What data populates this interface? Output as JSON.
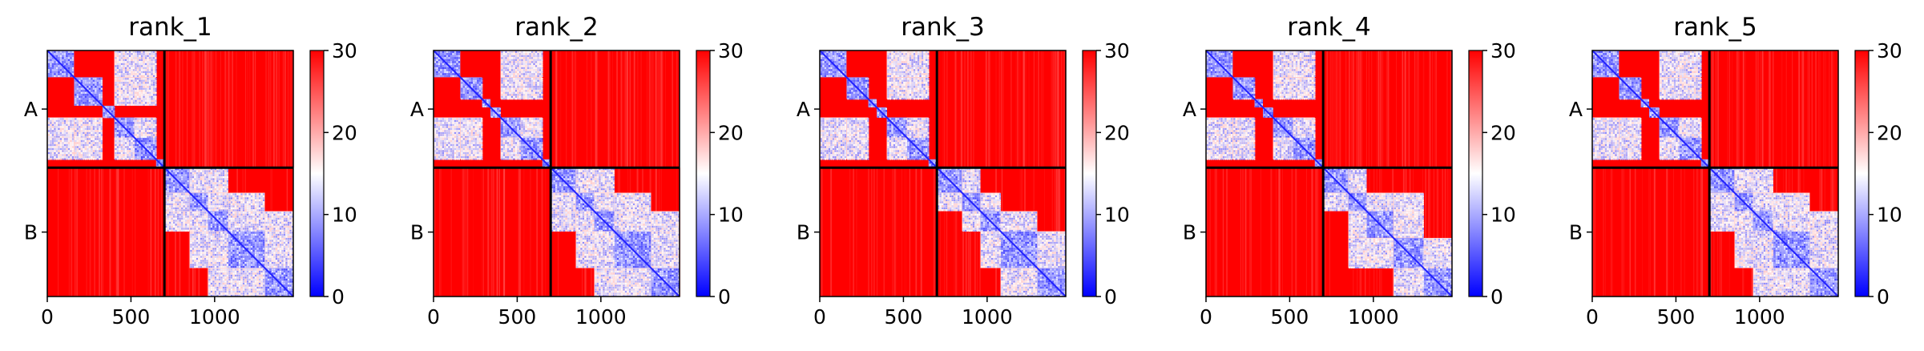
{
  "chart_data": {
    "type": "heatmap",
    "colormap": {
      "low": "#0000ff",
      "mid": "#ffffff",
      "high": "#ff0000"
    },
    "value_range": [
      0,
      30
    ],
    "colorbar_ticks": [
      "0",
      "10",
      "20",
      "30"
    ],
    "x_ticks": [
      {
        "value": 0,
        "label": "0"
      },
      {
        "value": 500,
        "label": "500"
      },
      {
        "value": 1000,
        "label": "1000"
      }
    ],
    "x_range": [
      0,
      1470
    ],
    "chain_boundary": 700,
    "y_labels": [
      "A",
      "B"
    ],
    "panels": [
      {
        "title": "rank_1",
        "domains": [
          [
            0,
            160
          ],
          [
            160,
            330
          ],
          [
            330,
            400
          ],
          [
            400,
            520
          ],
          [
            520,
            650
          ],
          [
            650,
            700
          ],
          [
            700,
            850
          ],
          [
            850,
            960
          ],
          [
            960,
            1080
          ],
          [
            1080,
            1300
          ],
          [
            1300,
            1470
          ]
        ],
        "coupled": [
          [
            0,
            3
          ],
          [
            0,
            4
          ],
          [
            1,
            3
          ],
          [
            1,
            4
          ],
          [
            3,
            4
          ],
          [
            6,
            7
          ],
          [
            6,
            8
          ],
          [
            7,
            8
          ],
          [
            7,
            9
          ],
          [
            8,
            9
          ],
          [
            8,
            10
          ],
          [
            9,
            10
          ]
        ]
      },
      {
        "title": "rank_2",
        "domains": [
          [
            0,
            160
          ],
          [
            160,
            290
          ],
          [
            290,
            340
          ],
          [
            340,
            400
          ],
          [
            400,
            520
          ],
          [
            520,
            650
          ],
          [
            650,
            700
          ],
          [
            700,
            850
          ],
          [
            850,
            960
          ],
          [
            960,
            1080
          ],
          [
            1080,
            1300
          ],
          [
            1300,
            1470
          ]
        ],
        "coupled": [
          [
            0,
            4
          ],
          [
            0,
            5
          ],
          [
            1,
            4
          ],
          [
            1,
            5
          ],
          [
            4,
            5
          ],
          [
            7,
            8
          ],
          [
            7,
            9
          ],
          [
            8,
            9
          ],
          [
            8,
            10
          ],
          [
            9,
            10
          ],
          [
            9,
            11
          ],
          [
            10,
            11
          ]
        ]
      },
      {
        "title": "rank_3",
        "domains": [
          [
            0,
            160
          ],
          [
            160,
            290
          ],
          [
            290,
            340
          ],
          [
            340,
            400
          ],
          [
            400,
            520
          ],
          [
            520,
            650
          ],
          [
            650,
            700
          ],
          [
            700,
            850
          ],
          [
            850,
            960
          ],
          [
            960,
            1080
          ],
          [
            1080,
            1300
          ],
          [
            1300,
            1470
          ]
        ],
        "coupled": [
          [
            0,
            4
          ],
          [
            0,
            5
          ],
          [
            1,
            4
          ],
          [
            1,
            5
          ],
          [
            4,
            5
          ],
          [
            7,
            8
          ],
          [
            8,
            9
          ],
          [
            9,
            10
          ],
          [
            10,
            11
          ]
        ]
      },
      {
        "title": "rank_4",
        "domains": [
          [
            0,
            160
          ],
          [
            160,
            290
          ],
          [
            290,
            340
          ],
          [
            340,
            400
          ],
          [
            400,
            520
          ],
          [
            520,
            650
          ],
          [
            650,
            700
          ],
          [
            700,
            850
          ],
          [
            850,
            960
          ],
          [
            960,
            1120
          ],
          [
            1120,
            1300
          ],
          [
            1300,
            1470
          ]
        ],
        "coupled": [
          [
            0,
            4
          ],
          [
            0,
            5
          ],
          [
            1,
            4
          ],
          [
            1,
            5
          ],
          [
            4,
            5
          ],
          [
            7,
            8
          ],
          [
            8,
            9
          ],
          [
            8,
            10
          ],
          [
            9,
            10
          ],
          [
            10,
            11
          ]
        ]
      },
      {
        "title": "rank_5",
        "domains": [
          [
            0,
            160
          ],
          [
            160,
            290
          ],
          [
            290,
            340
          ],
          [
            340,
            400
          ],
          [
            400,
            520
          ],
          [
            520,
            650
          ],
          [
            650,
            700
          ],
          [
            700,
            850
          ],
          [
            850,
            960
          ],
          [
            960,
            1080
          ],
          [
            1080,
            1300
          ],
          [
            1300,
            1470
          ]
        ],
        "coupled": [
          [
            0,
            4
          ],
          [
            0,
            5
          ],
          [
            1,
            4
          ],
          [
            1,
            5
          ],
          [
            4,
            5
          ],
          [
            7,
            8
          ],
          [
            7,
            9
          ],
          [
            8,
            9
          ],
          [
            8,
            10
          ],
          [
            9,
            10
          ],
          [
            9,
            11
          ],
          [
            10,
            11
          ]
        ]
      }
    ]
  }
}
